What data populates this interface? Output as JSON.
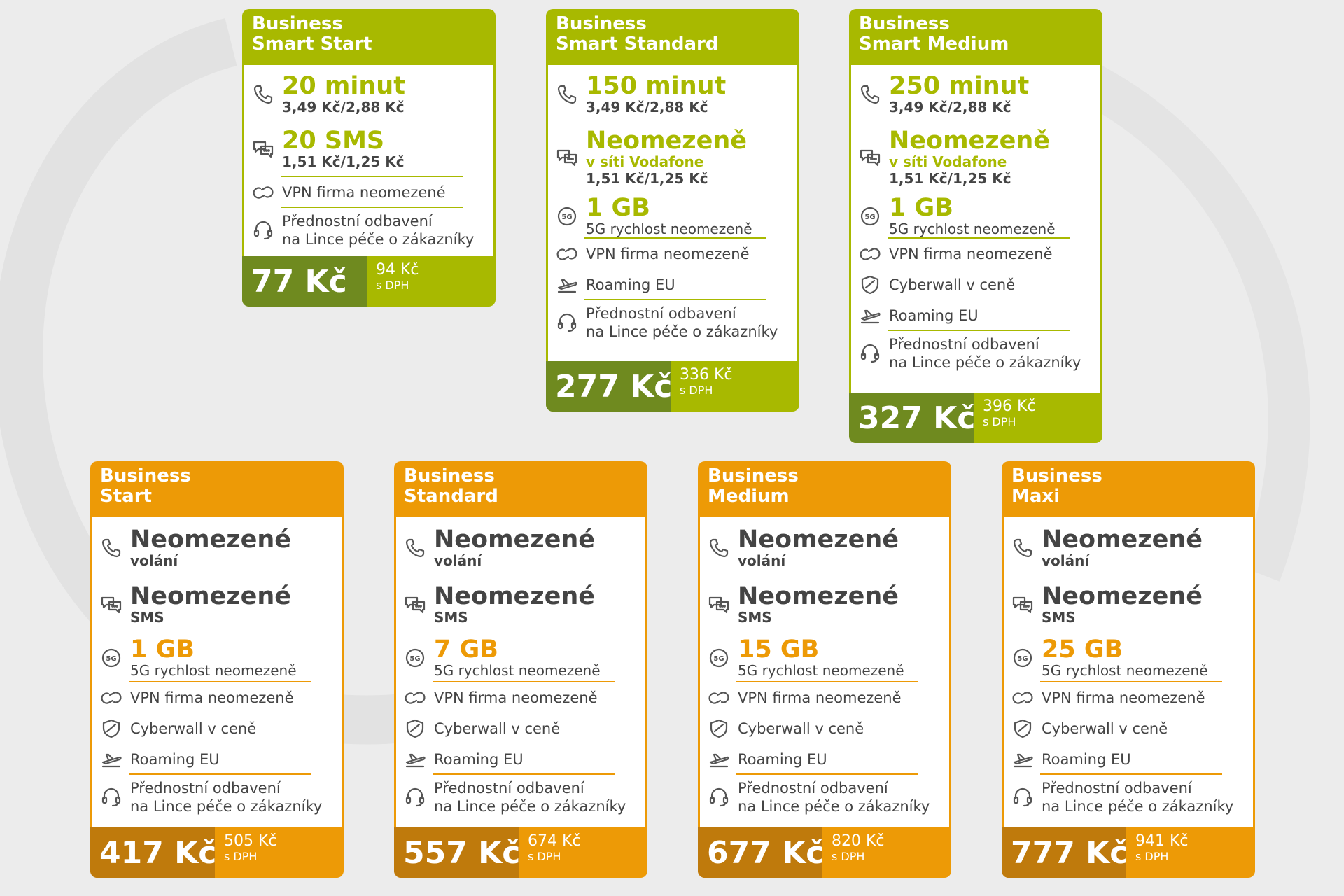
{
  "brand_colors": {
    "green": "#a8b900",
    "green_dark": "#6f8a1f",
    "orange": "#ed9a06",
    "orange_dark": "#bf7a0c"
  },
  "green_plans": [
    {
      "title_line1": "Business",
      "title_line2": "Smart Start",
      "calls_big": "20 minut",
      "calls_sub": "3,49 Kč/2,88 Kč",
      "sms_big": "20 SMS",
      "sms_sub": "1,51 Kč/1,25 Kč",
      "vpn": "VPN firma neomezené",
      "support_line1": "Přednostní odbavení",
      "support_line2": "na Lince péče o zákazníky",
      "price": "77 Kč",
      "price_vat": "94 Kč",
      "vat_label": "s DPH"
    },
    {
      "title_line1": "Business",
      "title_line2": "Smart Standard",
      "calls_big": "150 minut",
      "calls_sub": "3,49 Kč/2,88 Kč",
      "sms_big": "Neomezeně",
      "sms_net": "v síti Vodafone",
      "sms_sub": "1,51 Kč/1,25 Kč",
      "data_big": "1 GB",
      "data_sub": "5G rychlost neomezeně",
      "vpn": "VPN firma neomezeně",
      "roaming": "Roaming EU",
      "support_line1": "Přednostní odbavení",
      "support_line2": "na Lince péče o zákazníky",
      "price": "277 Kč",
      "price_vat": "336 Kč",
      "vat_label": "s DPH"
    },
    {
      "title_line1": "Business",
      "title_line2": "Smart Medium",
      "calls_big": "250 minut",
      "calls_sub": "3,49 Kč/2,88 Kč",
      "sms_big": "Neomezeně",
      "sms_net": "v síti Vodafone",
      "sms_sub": "1,51 Kč/1,25 Kč",
      "data_big": "1 GB",
      "data_sub": "5G rychlost neomezeně",
      "vpn": "VPN firma neomezeně",
      "cyberwall": "Cyberwall v ceně",
      "roaming": "Roaming EU",
      "support_line1": "Přednostní odbavení",
      "support_line2": "na Lince péče o zákazníky",
      "price": "327 Kč",
      "price_vat": "396 Kč",
      "vat_label": "s DPH"
    }
  ],
  "orange_plans": [
    {
      "title_line1": "Business",
      "title_line2": "Start",
      "calls_big": "Neomezené",
      "calls_sub": "volání",
      "sms_big": "Neomezené",
      "sms_sub": "SMS",
      "data_big": "1 GB",
      "data_sub": "5G rychlost neomezeně",
      "vpn": "VPN firma neomezeně",
      "cyberwall": "Cyberwall v ceně",
      "roaming": "Roaming EU",
      "support_line1": "Přednostní odbavení",
      "support_line2": "na Lince péče o zákazníky",
      "price": "417 Kč",
      "price_vat": "505 Kč",
      "vat_label": "s DPH"
    },
    {
      "title_line1": "Business",
      "title_line2": "Standard",
      "calls_big": "Neomezené",
      "calls_sub": "volání",
      "sms_big": "Neomezené",
      "sms_sub": "SMS",
      "data_big": "7 GB",
      "data_sub": "5G rychlost neomezeně",
      "vpn": "VPN firma neomezeně",
      "cyberwall": "Cyberwall v ceně",
      "roaming": "Roaming EU",
      "support_line1": "Přednostní odbavení",
      "support_line2": "na Lince péče o zákazníky",
      "price": "557 Kč",
      "price_vat": "674 Kč",
      "vat_label": "s DPH"
    },
    {
      "title_line1": "Business",
      "title_line2": "Medium",
      "calls_big": "Neomezené",
      "calls_sub": "volání",
      "sms_big": "Neomezené",
      "sms_sub": "SMS",
      "data_big": "15 GB",
      "data_sub": "5G rychlost neomezeně",
      "vpn": "VPN firma neomezeně",
      "cyberwall": "Cyberwall v ceně",
      "roaming": "Roaming EU",
      "support_line1": "Přednostní odbavení",
      "support_line2": "na Lince péče o zákazníky",
      "price": "677 Kč",
      "price_vat": "820 Kč",
      "vat_label": "s DPH"
    },
    {
      "title_line1": "Business",
      "title_line2": "Maxi",
      "calls_big": "Neomezené",
      "calls_sub": "volání",
      "sms_big": "Neomezené",
      "sms_sub": "SMS",
      "data_big": "25 GB",
      "data_sub": "5G rychlost neomezeně",
      "vpn": "VPN firma neomezeně",
      "cyberwall": "Cyberwall v ceně",
      "roaming": "Roaming EU",
      "support_line1": "Přednostní odbavení",
      "support_line2": "na Lince péče o zákazníky",
      "price": "777 Kč",
      "price_vat": "941 Kč",
      "vat_label": "s DPH"
    }
  ]
}
